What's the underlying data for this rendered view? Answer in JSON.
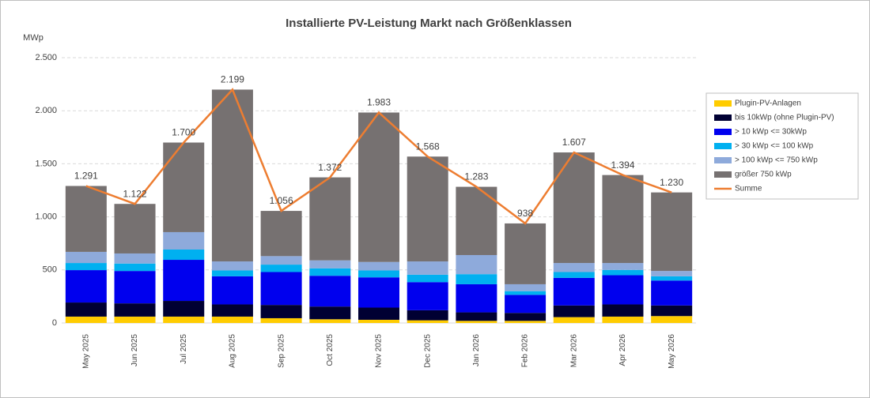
{
  "chart_data": {
    "type": "bar",
    "stacked": true,
    "title": "Installierte PV-Leistung Markt nach Größenklassen",
    "y_label": "MWp",
    "categories": [
      "May 2025",
      "Jun 2025",
      "Jul 2025",
      "Aug 2025",
      "Sep 2025",
      "Oct 2025",
      "Nov 2025",
      "Dec 2025",
      "Jan 2026",
      "Feb 2026",
      "Mar 2026",
      "Apr 2026",
      "May 2026"
    ],
    "series": [
      {
        "name": "Plugin-PV-Anlagen",
        "color": "#ffcc00",
        "values": [
          60,
          60,
          60,
          60,
          45,
          35,
          30,
          25,
          20,
          20,
          55,
          60,
          65
        ]
      },
      {
        "name": "bis 10kWp (ohne Plugin-PV)",
        "color": "#000033",
        "values": [
          133,
          125,
          148,
          115,
          125,
          120,
          115,
          95,
          80,
          75,
          110,
          115,
          100
        ]
      },
      {
        "name": "> 10 kWp <= 30kWp",
        "color": "#0000ee",
        "values": [
          305,
          305,
          387,
          265,
          310,
          290,
          285,
          265,
          265,
          170,
          260,
          275,
          235
        ]
      },
      {
        "name": "> 30 kWp <= 100 kWp",
        "color": "#00b0f0",
        "values": [
          67,
          70,
          97,
          55,
          70,
          70,
          65,
          70,
          95,
          35,
          55,
          50,
          40
        ]
      },
      {
        "name": "> 100 kWp <= 750 kWp",
        "color": "#8eaadb",
        "values": [
          105,
          95,
          164,
          85,
          80,
          75,
          80,
          125,
          180,
          65,
          85,
          65,
          50
        ]
      },
      {
        "name": "größer 750 kWp",
        "color": "#767171",
        "values": [
          621,
          467,
          844,
          1619,
          426,
          782,
          1408,
          988,
          643,
          573,
          1042,
          829,
          740
        ]
      },
      {
        "name": "Summe",
        "color": "#ed7d31",
        "type": "line",
        "values": [
          1291,
          1122,
          1700,
          2199,
          1056,
          1372,
          1983,
          1568,
          1283,
          938,
          1607,
          1394,
          1230
        ],
        "value_labels": [
          "1.291",
          "1.122",
          "1.700",
          "2.199",
          "1.056",
          "1.372",
          "1.983",
          "1.568",
          "1.283",
          "938",
          "1.607",
          "1.394",
          "1.230"
        ]
      }
    ],
    "ylim": [
      0,
      2500
    ],
    "yticks": [
      0,
      500,
      {
        "value": 1000,
        "label": "1.000"
      },
      {
        "value": 1500,
        "label": "1.500"
      },
      {
        "value": 2000,
        "label": "2.000"
      },
      {
        "value": 2500,
        "label": "2.500"
      }
    ],
    "grid": true,
    "legend": "right"
  }
}
